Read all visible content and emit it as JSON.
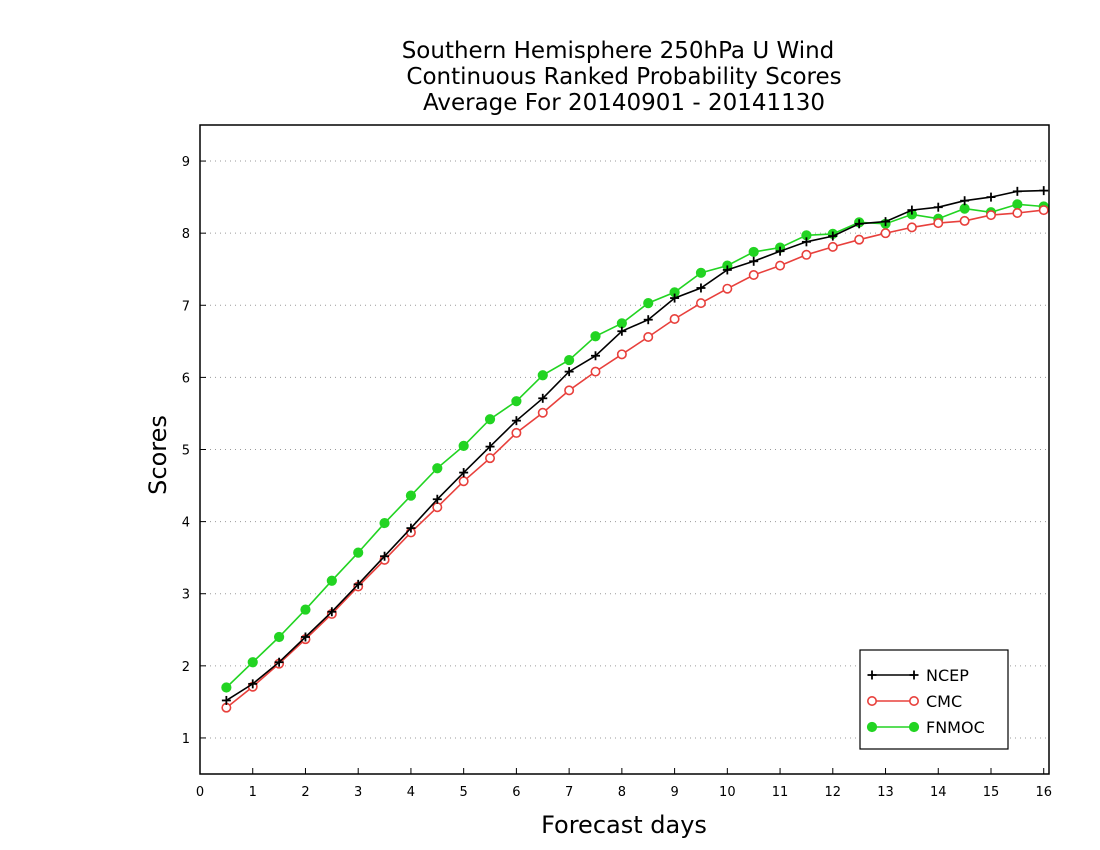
{
  "chart_data": {
    "type": "line",
    "title": [
      "Southern Hemisphere 250hPa U Wind",
      "Continuous Ranked Probability Scores",
      "Average For 20140901 - 20141130"
    ],
    "xlabel": "Forecast days",
    "ylabel": "Scores",
    "xlim": [
      0,
      16.1
    ],
    "ylim": [
      0.5,
      9.5
    ],
    "xticks": [
      "0",
      "1",
      "2",
      "3",
      "4",
      "5",
      "6",
      "7",
      "8",
      "9",
      "10",
      "11",
      "12",
      "13",
      "14",
      "15",
      "16"
    ],
    "yticks": [
      "1",
      "2",
      "3",
      "4",
      "5",
      "6",
      "7",
      "8",
      "9"
    ],
    "grid": "horizontal-dotted",
    "legend_position": "bottom-right",
    "x": [
      0.5,
      1,
      1.5,
      2,
      2.5,
      3,
      3.5,
      4,
      4.5,
      5,
      5.5,
      6,
      6.5,
      7,
      7.5,
      8,
      8.5,
      9,
      9.5,
      10,
      10.5,
      11,
      11.5,
      12,
      12.5,
      13,
      13.5,
      14,
      14.5,
      15,
      15.5,
      16
    ],
    "series": [
      {
        "name": "NCEP",
        "color": "#000000",
        "marker": "plus",
        "values": [
          1.52,
          1.75,
          2.05,
          2.4,
          2.75,
          3.13,
          3.52,
          3.91,
          4.31,
          4.68,
          5.04,
          5.4,
          5.71,
          6.08,
          6.3,
          6.64,
          6.8,
          7.1,
          7.24,
          7.49,
          7.61,
          7.75,
          7.88,
          7.96,
          8.13,
          8.16,
          8.32,
          8.36,
          8.45,
          8.5,
          8.58,
          8.59
        ]
      },
      {
        "name": "CMC",
        "color": "#e8403c",
        "marker": "open-circle",
        "values": [
          1.42,
          1.71,
          2.03,
          2.37,
          2.72,
          3.1,
          3.47,
          3.85,
          4.2,
          4.56,
          4.88,
          5.23,
          5.51,
          5.82,
          6.08,
          6.32,
          6.56,
          6.81,
          7.03,
          7.23,
          7.42,
          7.55,
          7.7,
          7.81,
          7.91,
          8.0,
          8.08,
          8.14,
          8.17,
          8.25,
          8.28,
          8.32
        ]
      },
      {
        "name": "FNMOC",
        "color": "#22d422",
        "marker": "filled-circle",
        "values": [
          1.7,
          2.05,
          2.4,
          2.78,
          3.18,
          3.57,
          3.98,
          4.36,
          4.74,
          5.05,
          5.42,
          5.67,
          6.03,
          6.24,
          6.57,
          6.75,
          7.03,
          7.18,
          7.45,
          7.55,
          7.74,
          7.8,
          7.97,
          7.99,
          8.15,
          8.13,
          8.26,
          8.2,
          8.34,
          8.29,
          8.4,
          8.37
        ]
      }
    ]
  }
}
